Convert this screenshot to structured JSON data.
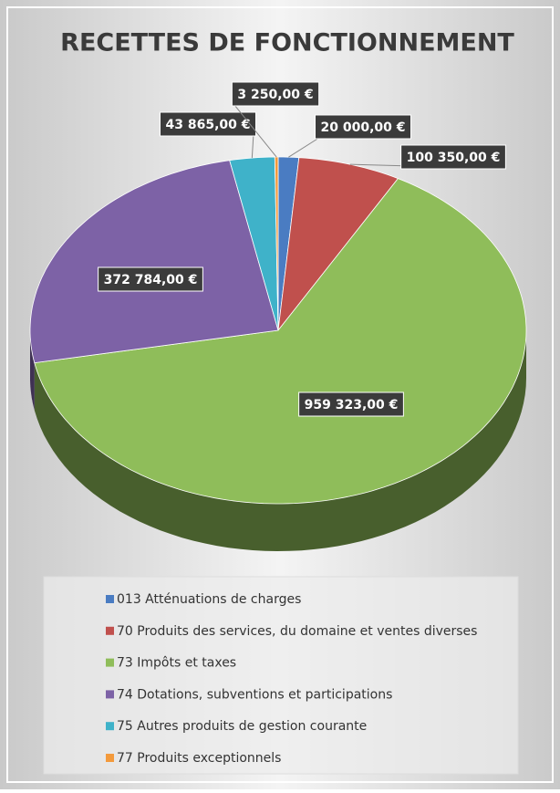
{
  "chart_data": {
    "type": "pie",
    "title": "RECETTES DE FONCTIONNEMENT",
    "categories": [
      "013 Atténuations de charges",
      "70 Produits des services, du domaine et ventes diverses",
      "73 Impôts et taxes",
      "74 Dotations, subventions et participations",
      "75 Autres produits de gestion courante",
      "77 Produits exceptionnels"
    ],
    "values": [
      20000,
      100350,
      959323,
      372784,
      43865,
      3250
    ],
    "value_labels": [
      "20 000,00 €",
      "100 350,00 €",
      "959 323,00 €",
      "372 784,00 €",
      "43 865,00 €",
      "3 250,00 €"
    ],
    "colors": [
      "#4a7cc2",
      "#c0504d",
      "#8fbd5a",
      "#7d62a6",
      "#3fb2c9",
      "#f39a3c"
    ],
    "legend": "bottom"
  }
}
